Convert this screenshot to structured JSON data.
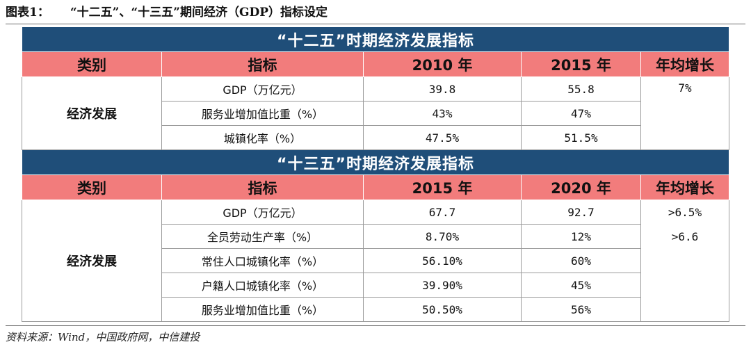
{
  "figure": {
    "label": "图表1：",
    "title": "“十二五”、“十三五”期间经济（GDP）指标设定"
  },
  "sections": [
    {
      "title": "“十二五”时期经济发展指标",
      "headers": [
        "类别",
        "指标",
        "2010 年",
        "2015 年",
        "年均增长"
      ],
      "category": "经济发展",
      "rows": [
        {
          "name": "GDP（万亿元）",
          "v1": "39.8",
          "v2": "55.8",
          "growth": "7%"
        },
        {
          "name": "服务业增加值比重（%）",
          "v1": "43%",
          "v2": "47%",
          "growth": ""
        },
        {
          "name": "城镇化率（%）",
          "v1": "47.5%",
          "v2": "51.5%",
          "growth": ""
        }
      ]
    },
    {
      "title": "“十三五”时期经济发展指标",
      "headers": [
        "类别",
        "指标",
        "2015 年",
        "2020 年",
        "年均增长"
      ],
      "category": "经济发展",
      "rows": [
        {
          "name": "GDP（万亿元）",
          "v1": "67.7",
          "v2": "92.7",
          "growth": ">6.5%"
        },
        {
          "name": "全员劳动生产率（%）",
          "v1": "8.70%",
          "v2": "12%",
          "growth": ">6.6"
        },
        {
          "name": "常住人口城镇化率（%）",
          "v1": "56.10%",
          "v2": "60%",
          "growth": ""
        },
        {
          "name": "户籍人口城镇化率（%）",
          "v1": "39.90%",
          "v2": "45%",
          "growth": ""
        },
        {
          "name": "服务业增加值比重（%）",
          "v1": "50.50%",
          "v2": "56%",
          "growth": ""
        }
      ]
    }
  ],
  "source": "资料来源：Wind，中国政府网，中信建投",
  "colors": {
    "title_bg": "#1f4e79",
    "header_bg": "#f27c7c",
    "rule": "#6b6b6b"
  }
}
